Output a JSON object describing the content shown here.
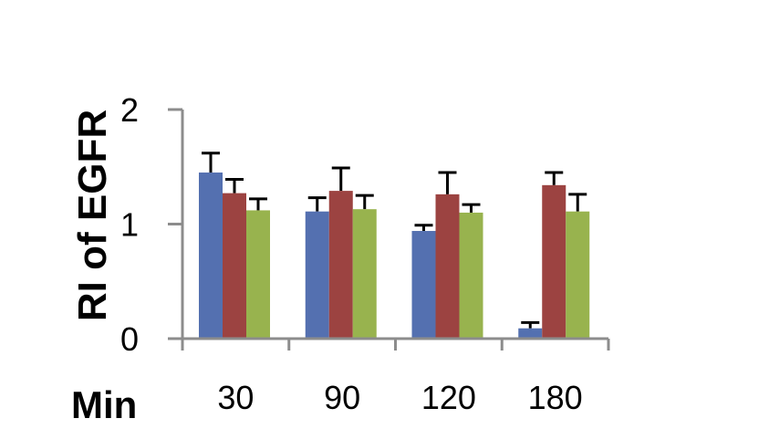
{
  "chart_data": {
    "type": "bar",
    "ylabel": "RI of EGFR",
    "xlabel": "Min",
    "categories": [
      "30",
      "90",
      "120",
      "180"
    ],
    "ylim": [
      0,
      2
    ],
    "yticks": [
      "0",
      "1",
      "2"
    ],
    "series": [
      {
        "color": "#5470b0",
        "values": [
          1.45,
          1.11,
          0.94,
          0.09
        ],
        "errors": [
          0.17,
          0.12,
          0.05,
          0.05
        ]
      },
      {
        "color": "#9c4341",
        "values": [
          1.27,
          1.29,
          1.26,
          1.34
        ],
        "errors": [
          0.12,
          0.2,
          0.19,
          0.11
        ]
      },
      {
        "color": "#98b34e",
        "values": [
          1.12,
          1.13,
          1.1,
          1.11
        ],
        "errors": [
          0.1,
          0.12,
          0.07,
          0.15
        ]
      }
    ],
    "grid": false,
    "legend": "none"
  }
}
